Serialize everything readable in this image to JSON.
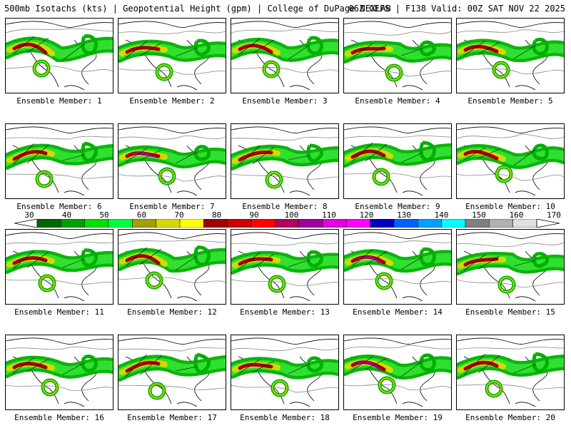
{
  "header": {
    "left": "500mb Isotachs (kts) | Geopotential Height (gpm) | College of DuPage NEXLAB",
    "right": "06Z GEFS | F138 Valid: 00Z SAT NOV 22 2025"
  },
  "members": [
    {
      "label": "Ensemble Member: 1"
    },
    {
      "label": "Ensemble Member: 2"
    },
    {
      "label": "Ensemble Member: 3"
    },
    {
      "label": "Ensemble Member: 4"
    },
    {
      "label": "Ensemble Member: 5"
    },
    {
      "label": "Ensemble Member: 6"
    },
    {
      "label": "Ensemble Member: 7"
    },
    {
      "label": "Ensemble Member: 8"
    },
    {
      "label": "Ensemble Member: 9"
    },
    {
      "label": "Ensemble Member: 10"
    },
    {
      "label": "Ensemble Member: 11"
    },
    {
      "label": "Ensemble Member: 12"
    },
    {
      "label": "Ensemble Member: 13"
    },
    {
      "label": "Ensemble Member: 14"
    },
    {
      "label": "Ensemble Member: 15"
    },
    {
      "label": "Ensemble Member: 16"
    },
    {
      "label": "Ensemble Member: 17"
    },
    {
      "label": "Ensemble Member: 18"
    },
    {
      "label": "Ensemble Member: 19"
    },
    {
      "label": "Ensemble Member: 20"
    }
  ],
  "colorbar": {
    "tick_labels": [
      "30",
      "40",
      "50",
      "60",
      "70",
      "80",
      "90",
      "100",
      "110",
      "120",
      "130",
      "140",
      "150",
      "160",
      "170"
    ],
    "colors": [
      "#006400",
      "#00a000",
      "#00e000",
      "#00ff40",
      "#a0a000",
      "#d8d800",
      "#ffff00",
      "#a00000",
      "#c80000",
      "#ff0000",
      "#b00060",
      "#a000a0",
      "#e000e0",
      "#ff00ff",
      "#0000c0",
      "#0060ff",
      "#00a0ff",
      "#00ffff",
      "#808080",
      "#b0b0b0",
      "#e0e0e0"
    ]
  }
}
